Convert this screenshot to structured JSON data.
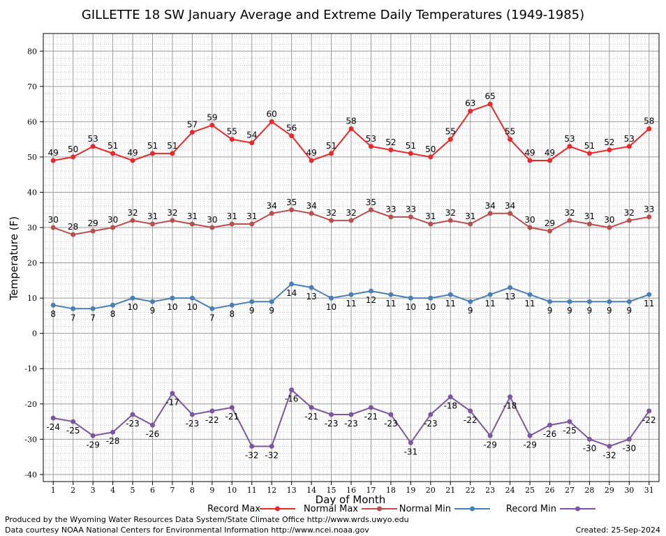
{
  "chart_data": {
    "type": "line",
    "title": "GILLETTE 18 SW January Average and Extreme Daily Temperatures (1949-1985)",
    "xlabel": "Day of Month",
    "ylabel": "Temperature (F)",
    "xlim": [
      0.5,
      31.5
    ],
    "ylim": [
      -42,
      85
    ],
    "y_ticks": [
      -40,
      -30,
      -20,
      -10,
      0,
      10,
      20,
      30,
      40,
      50,
      60,
      70,
      80
    ],
    "categories": [
      "1",
      "2",
      "3",
      "4",
      "5",
      "6",
      "7",
      "8",
      "9",
      "10",
      "11",
      "12",
      "13",
      "14",
      "15",
      "16",
      "17",
      "18",
      "19",
      "20",
      "21",
      "22",
      "23",
      "24",
      "25",
      "26",
      "27",
      "28",
      "29",
      "30",
      "31"
    ],
    "grid": true,
    "legend_position": "bottom",
    "series": [
      {
        "name": "Record Max",
        "color": "#e8282a",
        "label_pos": "above",
        "values": [
          49,
          50,
          53,
          51,
          49,
          51,
          51,
          57,
          59,
          55,
          54,
          60,
          56,
          49,
          51,
          58,
          53,
          52,
          51,
          50,
          55,
          63,
          65,
          55,
          49,
          49,
          53,
          51,
          52,
          53,
          58
        ]
      },
      {
        "name": "Normal Max",
        "color": "#b94e4e",
        "label_pos": "above",
        "values": [
          30,
          28,
          29,
          30,
          32,
          31,
          32,
          31,
          30,
          31,
          31,
          34,
          35,
          34,
          32,
          32,
          35,
          33,
          33,
          31,
          32,
          31,
          34,
          34,
          30,
          29,
          32,
          31,
          30,
          32,
          33
        ]
      },
      {
        "name": "Normal Min",
        "color": "#4a7fb5",
        "label_pos": "below",
        "values": [
          8,
          7,
          7,
          8,
          10,
          9,
          10,
          10,
          7,
          8,
          9,
          9,
          14,
          13,
          10,
          11,
          12,
          11,
          10,
          10,
          11,
          9,
          11,
          13,
          11,
          9,
          9,
          9,
          9,
          9,
          11
        ]
      },
      {
        "name": "Record Min",
        "color": "#7b55a0",
        "label_pos": "below",
        "values": [
          -24,
          -25,
          -29,
          -28,
          -23,
          -26,
          -17,
          -23,
          -22,
          -21,
          -32,
          -32,
          -16,
          -21,
          -23,
          -23,
          -21,
          -23,
          -31,
          -23,
          -18,
          -22,
          -29,
          -18,
          -29,
          -26,
          -25,
          -30,
          -32,
          -30,
          -22
        ]
      }
    ]
  },
  "footer": {
    "credit_line1": "Produced by the Wyoming Water Resources Data System/State Climate Office http://www.wrds.uwyo.edu",
    "credit_line2": "Data courtesy NOAA National Centers for Environmental Information http://www.ncei.noaa.gov",
    "created": "Created:  25-Sep-2024"
  }
}
